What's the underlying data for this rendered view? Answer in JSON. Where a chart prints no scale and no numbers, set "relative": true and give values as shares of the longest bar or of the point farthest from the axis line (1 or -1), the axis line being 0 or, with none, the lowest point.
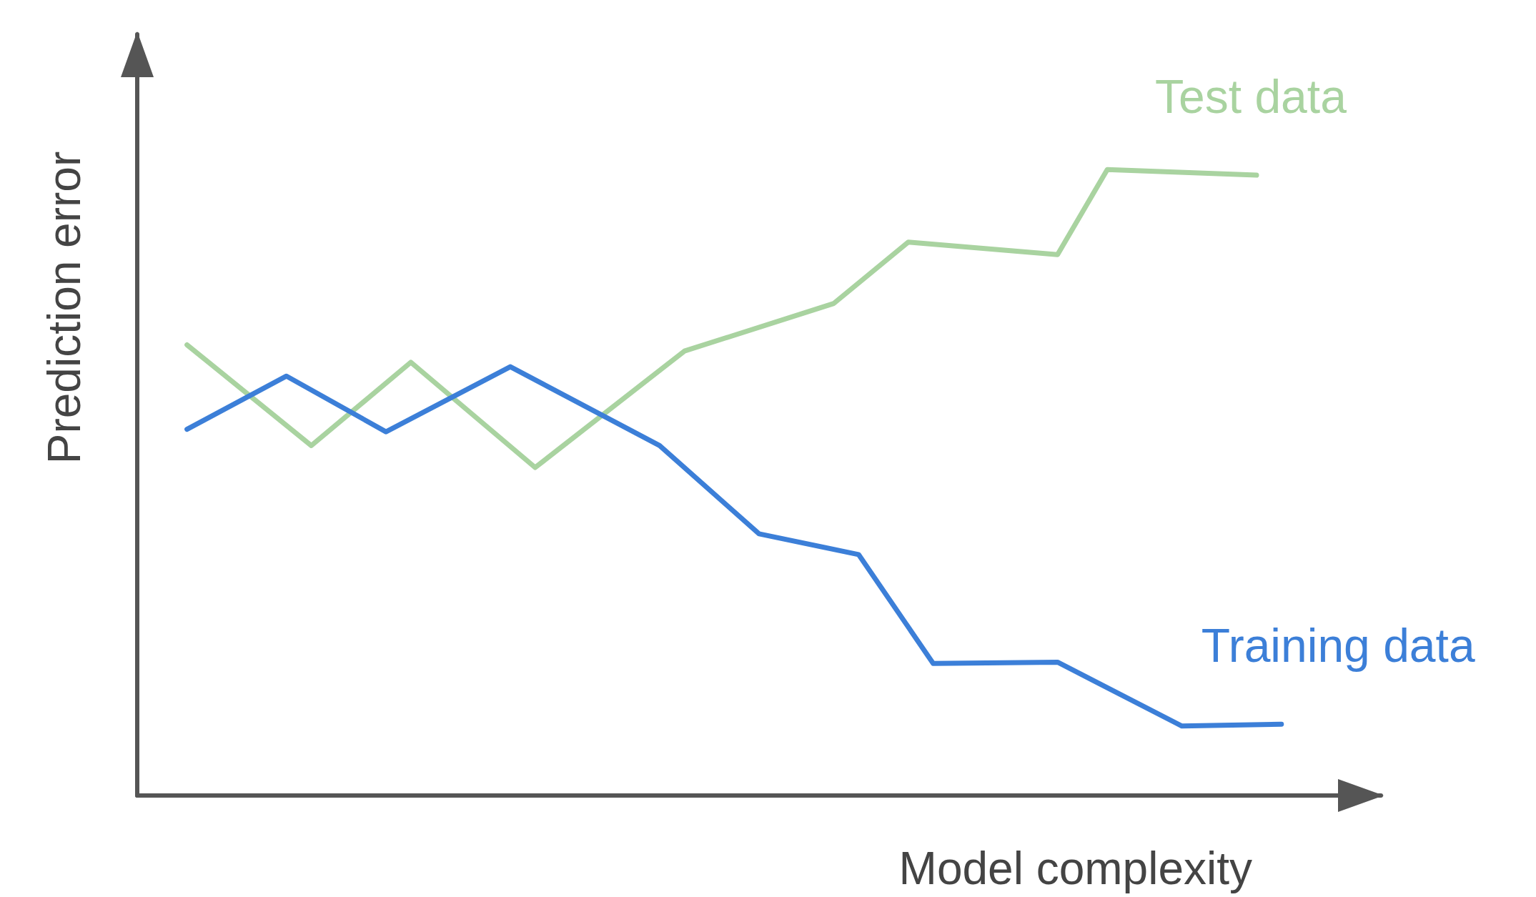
{
  "chart_data": {
    "type": "line",
    "relative": true,
    "xlabel": "Model complexity",
    "ylabel": "Prediction error",
    "legend": false,
    "grid": false,
    "marker": "none",
    "line_style": "solid",
    "categories": [
      null,
      null,
      null,
      null,
      null,
      null,
      null,
      null,
      null,
      null,
      null,
      null,
      null,
      null,
      null,
      null,
      null,
      null,
      null,
      null,
      null,
      null,
      null,
      null,
      null,
      null,
      null,
      null,
      null,
      null,
      null,
      null,
      null,
      null,
      null,
      null,
      null,
      null,
      null,
      null,
      null,
      null,
      null,
      null,
      null,
      null,
      null,
      null,
      null,
      null,
      null
    ],
    "series": [
      {
        "name": "Test data",
        "color": "#a9d3a0",
        "values": [
          null,
          null,
          0.72,
          null,
          null,
          null,
          null,
          0.559,
          null,
          null,
          null,
          0.692,
          null,
          null,
          null,
          null,
          0.524,
          null,
          null,
          null,
          null,
          null,
          0.71,
          null,
          null,
          null,
          null,
          null,
          0.786,
          null,
          null,
          0.884,
          null,
          null,
          null,
          null,
          null,
          0.864,
          null,
          1,
          null,
          null,
          null,
          null,
          null,
          0.991,
          null,
          null,
          null,
          null,
          null
        ]
      },
      {
        "name": "Training data",
        "color": "#3c7fd8",
        "values": [
          null,
          null,
          0.585,
          null,
          null,
          null,
          0.67,
          null,
          null,
          null,
          0.581,
          null,
          null,
          null,
          null,
          0.685,
          null,
          null,
          null,
          null,
          null,
          0.559,
          null,
          null,
          null,
          0.418,
          null,
          null,
          null,
          0.385,
          null,
          null,
          0.211,
          null,
          null,
          null,
          null,
          0.213,
          null,
          null,
          null,
          null,
          0.111,
          null,
          null,
          null,
          0.114,
          null,
          null,
          null,
          null
        ]
      }
    ]
  }
}
